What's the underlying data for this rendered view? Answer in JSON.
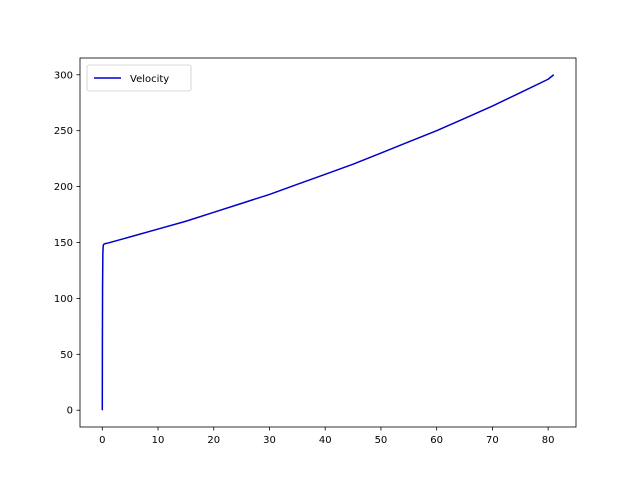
{
  "chart_data": {
    "type": "line",
    "title": "",
    "xlabel": "",
    "ylabel": "",
    "xlim": [
      -4,
      85
    ],
    "ylim": [
      -15,
      315
    ],
    "xticks": [
      0,
      10,
      20,
      30,
      40,
      50,
      60,
      70,
      80
    ],
    "yticks": [
      0,
      50,
      100,
      150,
      200,
      250,
      300
    ],
    "grid": false,
    "legend": {
      "position": "top-left"
    },
    "series": [
      {
        "name": "Velocity",
        "color": "#0000cc",
        "x": [
          0,
          0.02,
          0.05,
          0.1,
          0.15,
          0.2,
          0.3,
          0.5,
          1,
          5,
          10,
          15,
          20,
          25,
          30,
          35,
          40,
          45,
          50,
          55,
          60,
          65,
          70,
          75,
          80,
          81
        ],
        "y": [
          0,
          60,
          110,
          140,
          146,
          148,
          148.5,
          149,
          149.5,
          155,
          162,
          169,
          177,
          185,
          193,
          202,
          211,
          220,
          230,
          240,
          250,
          261,
          272,
          284,
          296,
          300
        ]
      }
    ]
  }
}
